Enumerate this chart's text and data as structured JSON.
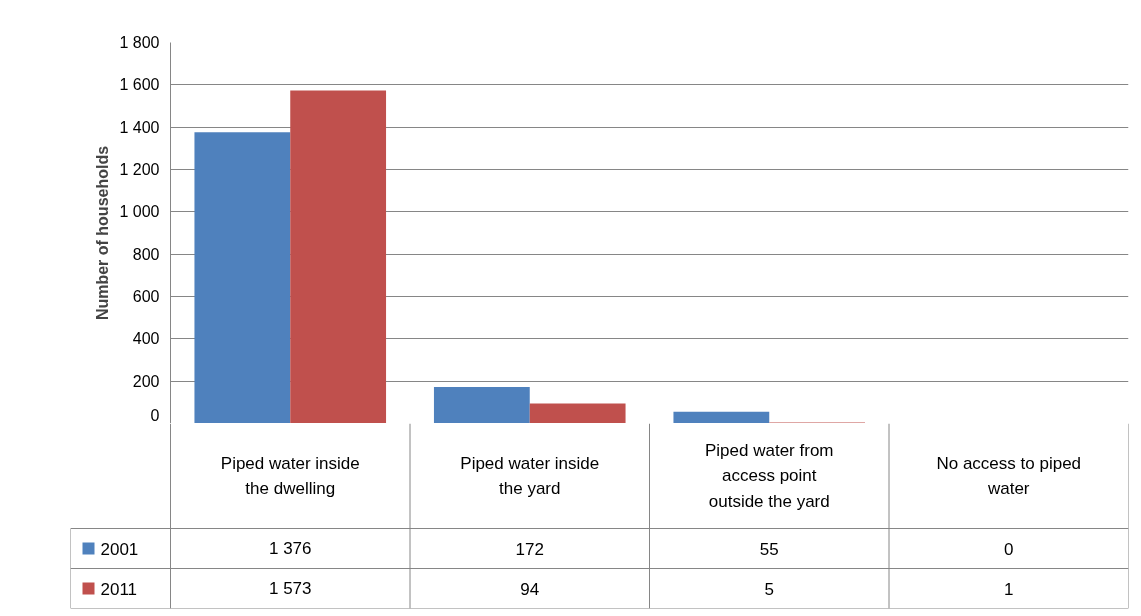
{
  "chart_data": {
    "type": "bar",
    "ylabel": "Number of households",
    "categories": [
      "Piped water inside the dwelling",
      "Piped water inside the yard",
      "Piped water from access point outside the yard",
      "No access to piped water"
    ],
    "series": [
      {
        "name": "2001",
        "color": "#4f81bd",
        "values": [
          1376,
          172,
          55,
          0
        ],
        "value_labels": [
          "1 376",
          "172",
          "55",
          "0"
        ]
      },
      {
        "name": "2011",
        "color": "#c0504d",
        "values": [
          1573,
          94,
          5,
          1
        ],
        "value_labels": [
          "1 573",
          "94",
          "5",
          "1"
        ]
      }
    ],
    "ylim": [
      0,
      1800
    ],
    "yticks": [
      0,
      {
        "value": 200,
        "label": "200"
      },
      {
        "value": 400,
        "label": "400"
      },
      {
        "value": 600,
        "label": "600"
      },
      {
        "value": 800,
        "label": "800"
      },
      {
        "value": 1000,
        "label": "1 000"
      },
      {
        "value": 1200,
        "label": "1 200"
      },
      {
        "value": 1400,
        "label": "1 400"
      },
      {
        "value": 1600,
        "label": "1 600"
      },
      {
        "value": 1800,
        "label": "1 800"
      }
    ],
    "grid": "y",
    "legend": "bottom"
  }
}
